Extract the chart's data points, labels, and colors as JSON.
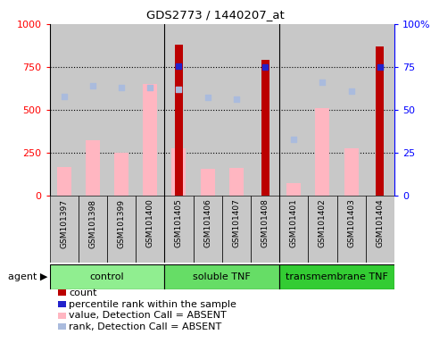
{
  "title": "GDS2773 / 1440207_at",
  "samples": [
    "GSM101397",
    "GSM101398",
    "GSM101399",
    "GSM101400",
    "GSM101405",
    "GSM101406",
    "GSM101407",
    "GSM101408",
    "GSM101401",
    "GSM101402",
    "GSM101403",
    "GSM101404"
  ],
  "count_values": [
    null,
    null,
    null,
    null,
    880,
    null,
    null,
    790,
    null,
    null,
    null,
    870
  ],
  "value_absent": [
    165,
    320,
    250,
    650,
    275,
    155,
    160,
    null,
    70,
    510,
    275,
    null
  ],
  "rank_absent_pct": [
    58,
    64,
    63,
    63,
    62,
    57,
    56,
    null,
    33,
    66,
    61,
    null
  ],
  "percentile_rank_pct": [
    null,
    null,
    null,
    null,
    75.5,
    null,
    null,
    74.8,
    null,
    null,
    null,
    74.8
  ],
  "groups": [
    {
      "label": "control",
      "start": 0,
      "end": 4
    },
    {
      "label": "soluble TNF",
      "start": 4,
      "end": 8
    },
    {
      "label": "transmembrane TNF",
      "start": 8,
      "end": 12
    }
  ],
  "group_colors": [
    "#90EE90",
    "#66DD66",
    "#33CC33"
  ],
  "ylim_left": [
    0,
    1000
  ],
  "ylim_right": [
    0,
    100
  ],
  "yticks_left": [
    0,
    250,
    500,
    750,
    1000
  ],
  "ytick_labels_left": [
    "0",
    "250",
    "500",
    "750",
    "1000"
  ],
  "yticks_right": [
    0,
    25,
    50,
    75,
    100
  ],
  "ytick_labels_right": [
    "0",
    "25",
    "50",
    "75",
    "100%"
  ],
  "count_color": "#BB0000",
  "value_absent_color": "#FFB6C1",
  "rank_absent_color": "#AABBDD",
  "percentile_color": "#2222CC",
  "bg_color": "#C8C8C8",
  "plot_bg": "white",
  "group_label_fontsize": 8,
  "tick_label_fontsize": 6.5,
  "legend_fontsize": 8
}
